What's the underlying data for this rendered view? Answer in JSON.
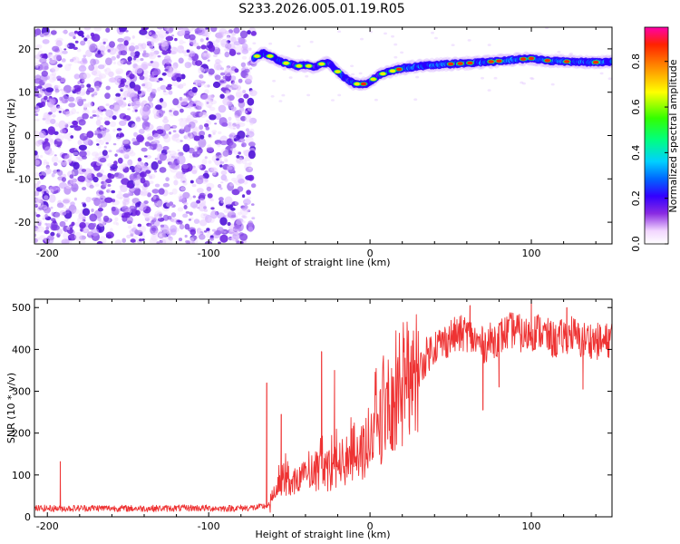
{
  "figure_title": "S233.2026.005.01.19.R05",
  "chart_data": [
    {
      "type": "heatmap",
      "title": "S233.2026.005.01.19.R05",
      "xlabel": "Height of straight line (km)",
      "ylabel": "Frequency (Hz)",
      "xlim": [
        -208,
        150
      ],
      "ylim": [
        -25,
        25
      ],
      "xticks": [
        -200,
        -100,
        0,
        100
      ],
      "yticks": [
        -20,
        -10,
        0,
        10,
        20
      ],
      "noise_region_x": [
        -208,
        -72
      ],
      "ridge": {
        "x": [
          -72,
          -66,
          -60,
          -55,
          -50,
          -45,
          -40,
          -35,
          -30,
          -26,
          -22,
          -18,
          -14,
          -10,
          -6,
          -2,
          2,
          6,
          10,
          15,
          20,
          30,
          40,
          50,
          60,
          70,
          80,
          90,
          100,
          110,
          120,
          130,
          140,
          150
        ],
        "freq": [
          18,
          19,
          18,
          17,
          16.5,
          16,
          16.2,
          15.8,
          16.5,
          16.8,
          15.5,
          14,
          13,
          12,
          11.8,
          12,
          13,
          14,
          14.5,
          15,
          15.5,
          16,
          16.3,
          16.5,
          16.7,
          16.9,
          17.2,
          17.5,
          17.8,
          17.3,
          17.1,
          17.0,
          16.9,
          17.0
        ]
      },
      "colorbar": {
        "label": "Normalized spectral amplitude",
        "range": [
          0,
          0.95
        ],
        "ticks": [
          "0.0",
          "0.2",
          "0.4",
          "0.6",
          "0.8"
        ],
        "tick_values": [
          0,
          0.2,
          0.4,
          0.6,
          0.8
        ]
      }
    },
    {
      "type": "line",
      "xlabel": "Height of straight line (km)",
      "ylabel": "SNR (10 * v/v)",
      "xlim": [
        -208,
        150
      ],
      "ylim": [
        0,
        520
      ],
      "xticks": [
        -200,
        -100,
        0,
        100
      ],
      "yticks": [
        0,
        100,
        200,
        300,
        400,
        500
      ],
      "color": "#ee3333",
      "series": [
        {
          "name": "SNR",
          "x": [
            -208,
            -190,
            -170,
            -150,
            -130,
            -110,
            -90,
            -70,
            -62,
            -58,
            -54,
            -50,
            -45,
            -40,
            -35,
            -30,
            -25,
            -20,
            -15,
            -10,
            -5,
            0,
            5,
            10,
            15,
            20,
            25,
            30,
            35,
            40,
            45,
            50,
            55,
            60,
            65,
            70,
            75,
            80,
            85,
            90,
            95,
            100,
            105,
            110,
            115,
            120,
            125,
            130,
            135,
            140,
            145,
            150
          ],
          "y": [
            20,
            20,
            21,
            20,
            20,
            21,
            20,
            22,
            28,
            60,
            95,
            90,
            85,
            95,
            110,
            115,
            110,
            125,
            135,
            140,
            160,
            185,
            215,
            240,
            265,
            290,
            320,
            345,
            385,
            410,
            415,
            430,
            435,
            440,
            420,
            410,
            420,
            430,
            440,
            450,
            430,
            440,
            445,
            430,
            420,
            430,
            440,
            420,
            425,
            420,
            415,
            430
          ]
        }
      ],
      "spikes": [
        {
          "x": -192,
          "y": 132
        },
        {
          "x": -64,
          "y": 320
        },
        {
          "x": -55,
          "y": 245
        },
        {
          "x": -30,
          "y": 395
        },
        {
          "x": -22,
          "y": 350
        },
        {
          "x": 62,
          "y": 505
        },
        {
          "x": 100,
          "y": 520
        },
        {
          "x": 122,
          "y": 500
        }
      ],
      "dips": [
        {
          "x": 70,
          "y": 255
        },
        {
          "x": 80,
          "y": 310
        },
        {
          "x": 132,
          "y": 305
        }
      ]
    }
  ]
}
